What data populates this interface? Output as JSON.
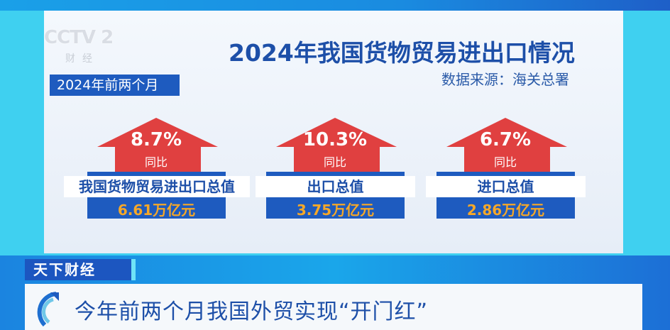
{
  "channel_logo": {
    "text": "CCTV 2",
    "sub": "财经"
  },
  "infographic": {
    "title": "2024年我国货物贸易进出口情况",
    "source": "数据来源：海关总署",
    "period": "2024年前两个月",
    "items": [
      {
        "pct": "8.7%",
        "yoy": "同比",
        "label": "我国货物贸易进出口总值",
        "value": "6.61万亿元"
      },
      {
        "pct": "10.3%",
        "yoy": "同比",
        "label": "出口总值",
        "value": "3.75万亿元"
      },
      {
        "pct": "6.7%",
        "yoy": "同比",
        "label": "进口总值",
        "value": "2.86万亿元"
      }
    ],
    "colors": {
      "arrow": "#e04040",
      "blue": "#1e5bbf",
      "value_text": "#f6a828"
    }
  },
  "lower_third": {
    "program": "天下财经",
    "headline": "今年前两个月我国外贸实现“开门红”"
  }
}
